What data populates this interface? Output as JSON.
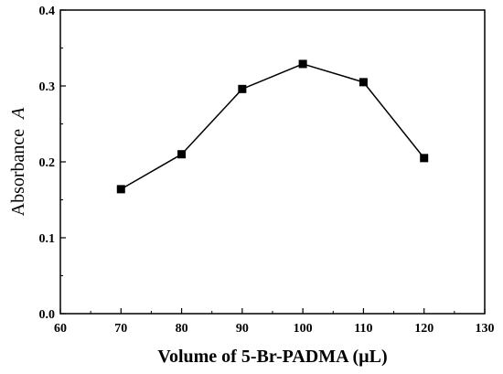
{
  "chart_data": {
    "type": "line",
    "title": "",
    "xlabel": "Volume of 5-Br-PADMA (µL)",
    "ylabel": "Absorbance",
    "ylabel_variable": "A",
    "xlim": [
      60,
      130
    ],
    "ylim": [
      0.0,
      0.4
    ],
    "xticks": [
      "60",
      "70",
      "80",
      "90",
      "100",
      "110",
      "120",
      "130"
    ],
    "yticks": [
      "0.0",
      "0.1",
      "0.2",
      "0.3",
      "0.4"
    ],
    "grid": false,
    "legend": "none",
    "marker": "square",
    "color": "#000000",
    "series": [
      {
        "x": [
          70,
          80,
          90,
          100,
          110,
          120
        ],
        "values": [
          0.164,
          0.21,
          0.296,
          0.329,
          0.305,
          0.205
        ]
      }
    ]
  }
}
